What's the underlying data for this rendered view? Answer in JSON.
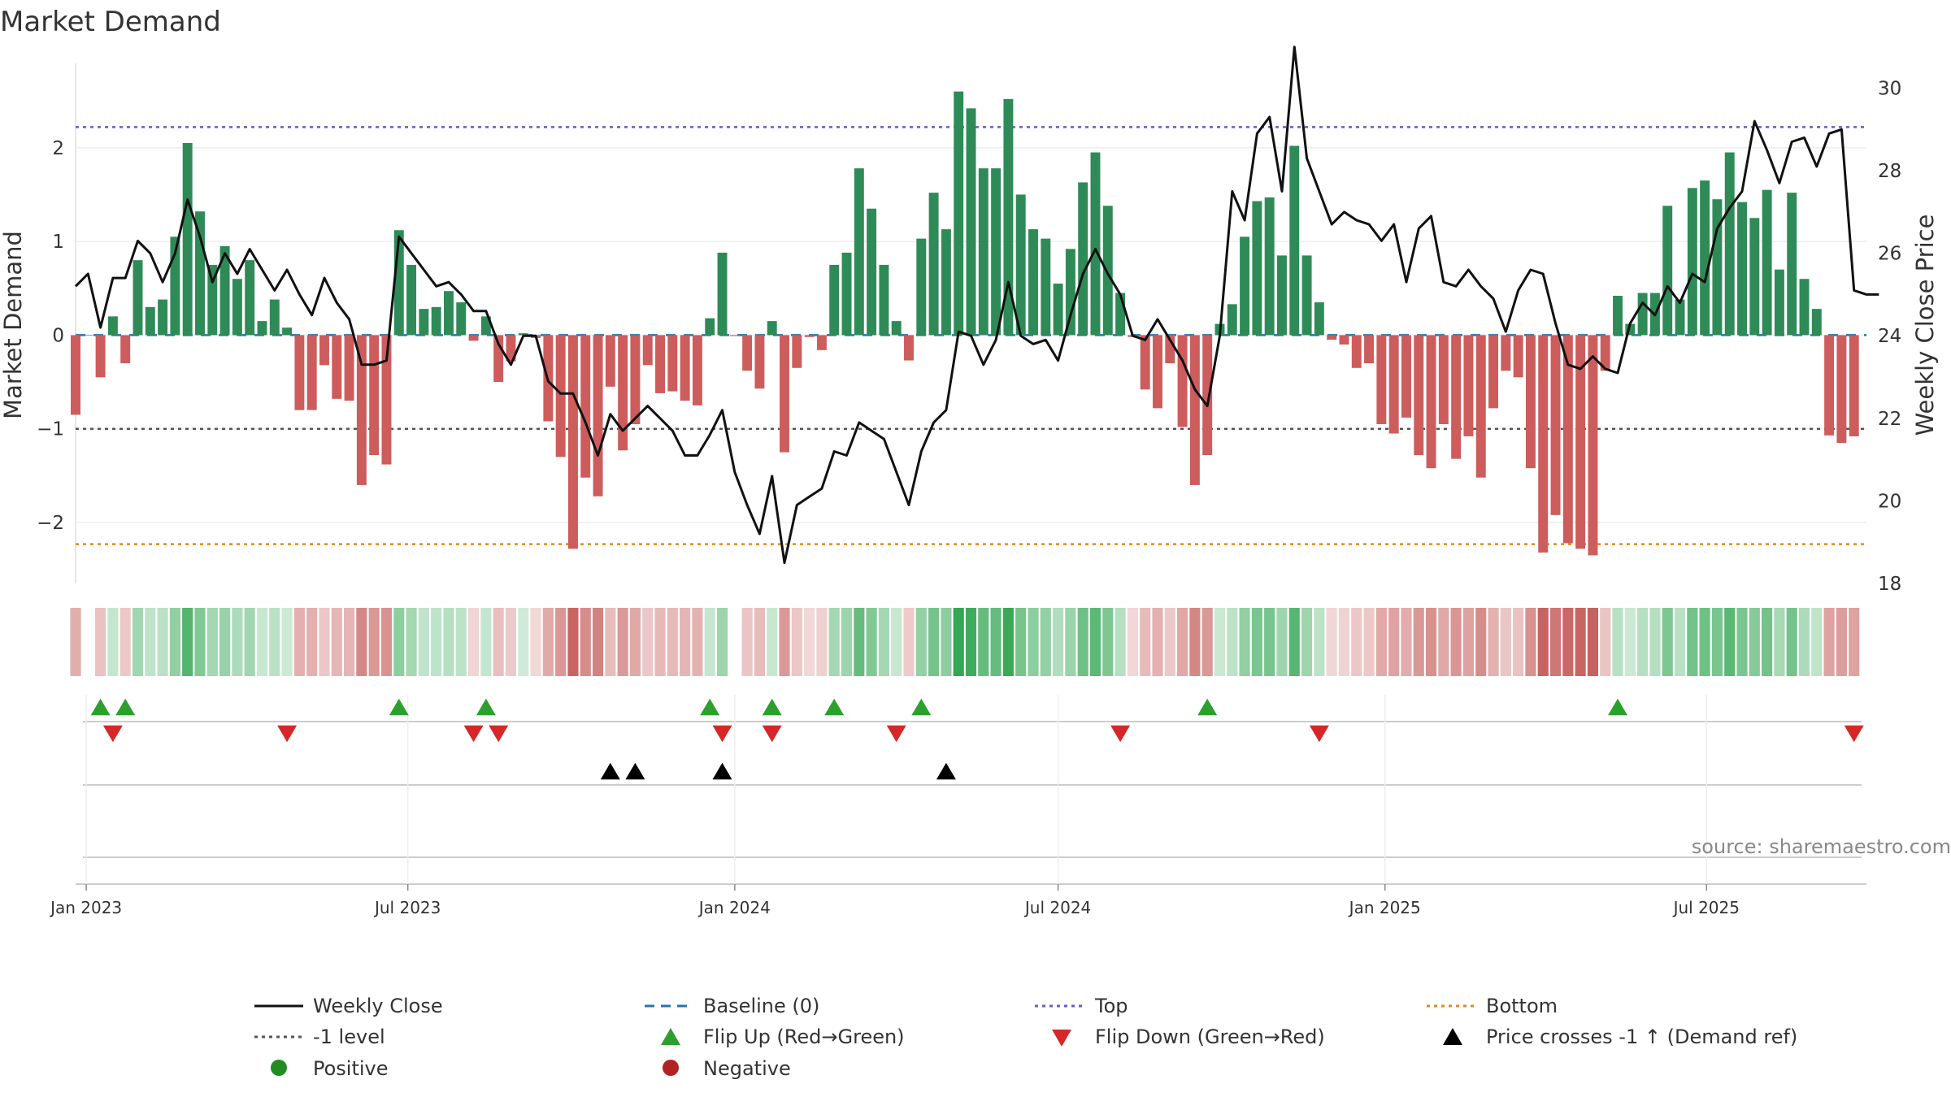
{
  "title": "Market Demand",
  "source_note": "source: sharemaestro.com",
  "colors": {
    "positive": "#2e8b57",
    "negative": "#cd5c5c",
    "price": "#111111",
    "baseline": "#1f77b4",
    "top": "#6a5acd",
    "bottom": "#e08a1e",
    "minus_one": "#555555",
    "flip_up": "#2ca02c",
    "flip_down": "#d62728",
    "cross": "#000000",
    "legend_positive": "#228b22",
    "legend_negative": "#b22222"
  },
  "chart_data": {
    "type": "bar+line",
    "title": "Market Demand",
    "ylabel": "Market Demand",
    "y2label": "Weekly Close Price",
    "ylim": [
      -2.65,
      2.9
    ],
    "yticks": [
      2,
      1,
      0,
      -1,
      -2
    ],
    "ytick_labels": [
      "2",
      "1",
      "0",
      "−1",
      "−2"
    ],
    "y2lim": [
      18,
      30.6
    ],
    "y2ticks": [
      30,
      28,
      26,
      24,
      22,
      20,
      18
    ],
    "x_start": "2022-12-26",
    "x_end": "2025-09-29",
    "week_start": "2022-12-26",
    "xticks": [
      {
        "date": "2023-01-01",
        "label": "Jan 2023"
      },
      {
        "date": "2023-07-01",
        "label": "Jul 2023"
      },
      {
        "date": "2024-01-01",
        "label": "Jan 2024"
      },
      {
        "date": "2024-07-01",
        "label": "Jul 2024"
      },
      {
        "date": "2025-01-01",
        "label": "Jan 2025"
      },
      {
        "date": "2025-07-01",
        "label": "Jul 2025"
      }
    ],
    "top_level": 2.22,
    "bottom_level": -2.23,
    "minus_one_level": -1,
    "demand": [
      -0.85,
      0,
      -0.45,
      0.2,
      -0.3,
      0.8,
      0.3,
      0.38,
      1.05,
      2.05,
      1.32,
      0.75,
      0.95,
      0.6,
      0.8,
      0.15,
      0.38,
      0.08,
      -0.8,
      -0.8,
      -0.32,
      -0.68,
      -0.7,
      -1.6,
      -1.28,
      -1.38,
      1.12,
      0.75,
      0.28,
      0.3,
      0.47,
      0.35,
      -0.06,
      0.2,
      -0.5,
      -0.28,
      0.02,
      -0.03,
      -0.92,
      -1.3,
      -2.28,
      -1.52,
      -1.72,
      -0.55,
      -1.23,
      -0.95,
      -0.32,
      -0.62,
      -0.6,
      -0.7,
      -0.75,
      0.18,
      0.88,
      -0.01,
      -0.38,
      -0.57,
      0.15,
      -1.25,
      -0.35,
      -0.02,
      -0.16,
      0.75,
      0.88,
      1.78,
      1.35,
      0.75,
      0.15,
      -0.27,
      1.03,
      1.52,
      1.13,
      2.6,
      2.42,
      1.78,
      1.78,
      2.52,
      1.5,
      1.13,
      1.03,
      0.55,
      0.92,
      1.63,
      1.95,
      1.38,
      0.45,
      -0.02,
      -0.58,
      -0.78,
      -0.3,
      -0.98,
      -1.6,
      -1.28,
      0.12,
      0.33,
      1.05,
      1.43,
      1.47,
      0.85,
      2.02,
      0.85,
      0.35,
      -0.05,
      -0.1,
      -0.35,
      -0.3,
      -0.95,
      -1.05,
      -0.88,
      -1.28,
      -1.42,
      -0.95,
      -1.32,
      -1.08,
      -1.52,
      -0.78,
      -0.38,
      -0.45,
      -1.42,
      -2.32,
      -1.92,
      -2.22,
      -2.28,
      -2.35,
      -0.38,
      0.42,
      0.12,
      0.45,
      0.45,
      1.38,
      0.38,
      1.57,
      1.65,
      1.45,
      1.95,
      1.42,
      1.25,
      1.55,
      0.7,
      1.52,
      0.6,
      0.28,
      -1.07,
      -1.15,
      -1.08
    ],
    "price": [
      25.2,
      25.5,
      24.2,
      25.4,
      25.4,
      26.3,
      26.0,
      25.3,
      26.0,
      27.3,
      26.4,
      25.3,
      26.0,
      25.5,
      26.1,
      25.6,
      25.1,
      25.6,
      25.0,
      24.5,
      25.4,
      24.8,
      24.4,
      23.3,
      23.3,
      23.4,
      26.4,
      26.0,
      25.6,
      25.2,
      25.3,
      25.0,
      24.6,
      24.6,
      23.8,
      23.3,
      24.0,
      24.0,
      22.9,
      22.6,
      22.6,
      21.9,
      21.1,
      22.1,
      21.7,
      22.0,
      22.3,
      22.0,
      21.7,
      21.1,
      21.1,
      21.6,
      22.2,
      20.7,
      19.9,
      19.2,
      20.6,
      18.5,
      19.9,
      20.1,
      20.3,
      21.2,
      21.1,
      21.9,
      21.7,
      21.5,
      20.7,
      19.9,
      21.2,
      21.9,
      22.2,
      24.1,
      24.0,
      23.3,
      23.9,
      25.3,
      24.0,
      23.8,
      23.9,
      23.4,
      24.5,
      25.5,
      26.1,
      25.5,
      25.0,
      24.0,
      23.9,
      24.4,
      23.9,
      23.4,
      22.7,
      22.3,
      24.0,
      27.5,
      26.8,
      28.9,
      29.3,
      27.5,
      31.0,
      28.3,
      27.5,
      26.7,
      27.0,
      26.8,
      26.7,
      26.3,
      26.7,
      25.3,
      26.6,
      26.9,
      25.3,
      25.2,
      25.6,
      25.2,
      24.9,
      24.1,
      25.1,
      25.6,
      25.5,
      24.3,
      23.3,
      23.2,
      23.5,
      23.2,
      23.1,
      24.3,
      24.8,
      24.5,
      25.2,
      24.8,
      25.5,
      25.3,
      26.6,
      27.1,
      27.5,
      29.2,
      28.5,
      27.7,
      28.7,
      28.8,
      28.1,
      28.9,
      29.0,
      25.1,
      25.0,
      25.0
    ],
    "flip_up_weeks": [
      2,
      4,
      26,
      33,
      51,
      56,
      61,
      68,
      91,
      124
    ],
    "flip_down_weeks": [
      3,
      17,
      32,
      34,
      52,
      56,
      66,
      84,
      100,
      143
    ],
    "price_cross_weeks": [
      43,
      45,
      52,
      70
    ]
  },
  "x_axis_labels": [
    "Jan 2023",
    "Jul 2023",
    "Jan 2024",
    "Jul 2024",
    "Jan 2025",
    "Jul 2025"
  ],
  "legend": [
    {
      "key": "weekly_close",
      "label": "Weekly Close",
      "marker": "line-solid"
    },
    {
      "key": "baseline",
      "label": "Baseline (0)",
      "marker": "line-dashed"
    },
    {
      "key": "top",
      "label": "Top",
      "marker": "line-dotted-top"
    },
    {
      "key": "bottom",
      "label": "Bottom",
      "marker": "line-dotted-bottom"
    },
    {
      "key": "minus_one",
      "label": "-1 level",
      "marker": "line-dotted-gray"
    },
    {
      "key": "flip_up",
      "label": "Flip Up (Red→Green)",
      "marker": "triangle-up-green"
    },
    {
      "key": "flip_down",
      "label": "Flip Down (Green→Red)",
      "marker": "triangle-down-red"
    },
    {
      "key": "price_cross",
      "label": "Price crosses -1 ↑ (Demand ref)",
      "marker": "triangle-up-black"
    },
    {
      "key": "positive",
      "label": "Positive",
      "marker": "circle-green"
    },
    {
      "key": "negative",
      "label": "Negative",
      "marker": "circle-red"
    }
  ]
}
